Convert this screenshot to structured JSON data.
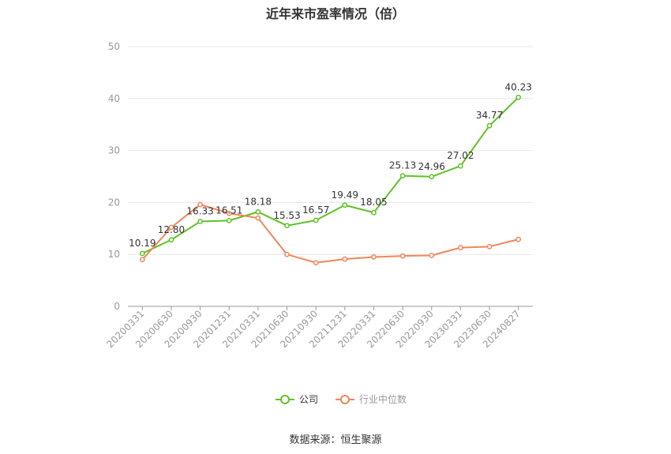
{
  "chart_data": {
    "type": "line",
    "title": "近年来市盈率情况（倍）",
    "categories": [
      "20200331",
      "20200630",
      "20200930",
      "20201231",
      "20210331",
      "20210630",
      "20210930",
      "20211231",
      "20220331",
      "20220630",
      "20220930",
      "20230331",
      "20230630",
      "20240827"
    ],
    "series": [
      {
        "name": "公司",
        "color": "#5ec225",
        "values": [
          10.19,
          12.8,
          16.33,
          16.51,
          18.18,
          15.53,
          16.57,
          19.49,
          18.05,
          25.13,
          24.96,
          27.02,
          34.77,
          40.23
        ],
        "labels": [
          "10.19",
          "12.80",
          "16.33",
          "16.51",
          "18.18",
          "15.53",
          "16.57",
          "19.49",
          "18.05",
          "25.13",
          "24.96",
          "27.02",
          "34.77",
          "40.23"
        ]
      },
      {
        "name": "行业中位数",
        "color": "#f0865a",
        "values": [
          9.0,
          15.2,
          19.6,
          17.9,
          17.0,
          10.0,
          8.4,
          9.1,
          9.5,
          9.7,
          9.8,
          11.3,
          11.5,
          12.9
        ]
      }
    ],
    "ylim": [
      0,
      50
    ],
    "yticks": [
      0,
      10,
      20,
      30,
      40,
      50
    ],
    "grid": true,
    "legend_position": "bottom"
  },
  "source_note": "数据来源：恒生聚源"
}
